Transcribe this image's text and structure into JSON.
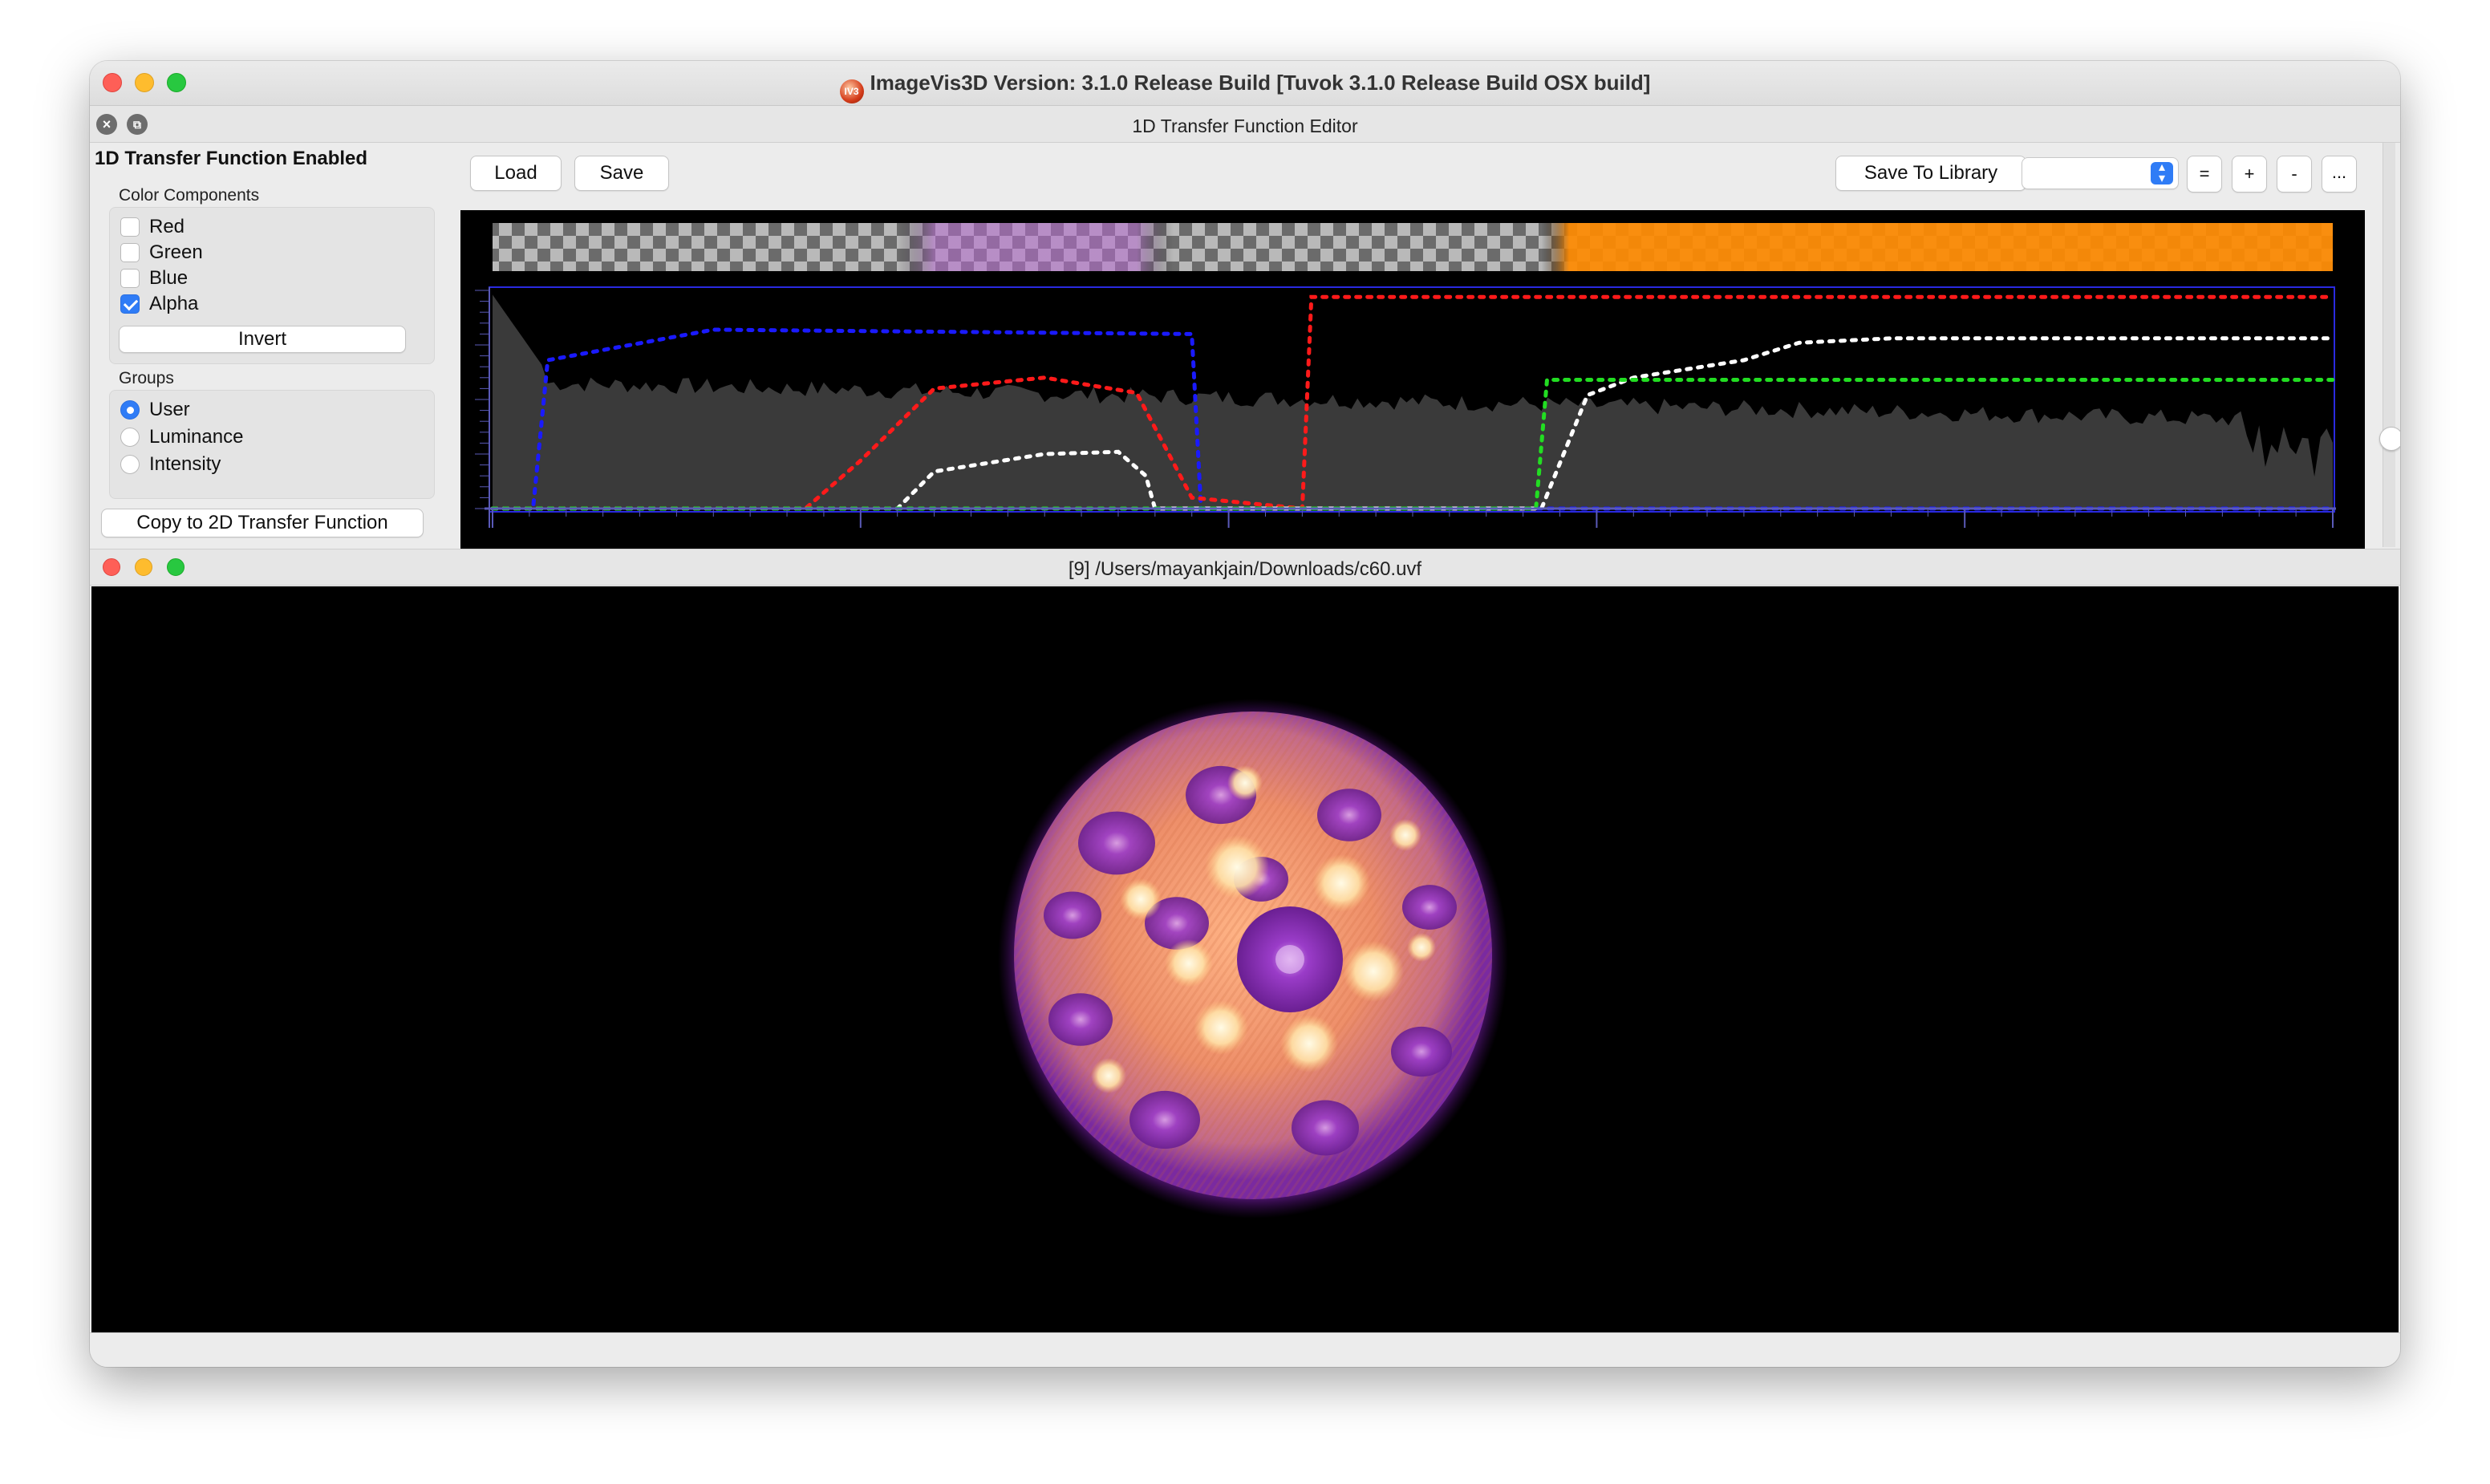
{
  "app": {
    "title": "ImageVis3D Version: 3.1.0 Release Build [Tuvok 3.1.0 Release Build OSX build]",
    "icon": "imagevis3d-app-icon",
    "icon_text": "IV3"
  },
  "tf_editor": {
    "dock_title": "1D Transfer Function Editor",
    "enabled_label": "1D Transfer Function Enabled",
    "color_components": {
      "label": "Color Components",
      "items": [
        {
          "label": "Red",
          "checked": false
        },
        {
          "label": "Green",
          "checked": false
        },
        {
          "label": "Blue",
          "checked": false
        },
        {
          "label": "Alpha",
          "checked": true
        }
      ],
      "invert_label": "Invert"
    },
    "groups": {
      "label": "Groups",
      "items": [
        {
          "label": "User",
          "selected": true
        },
        {
          "label": "Luminance",
          "selected": false
        },
        {
          "label": "Intensity",
          "selected": false
        }
      ]
    },
    "copy_2d_label": "Copy to 2D Transfer Function",
    "toolbar": {
      "load_label": "Load",
      "save_label": "Save",
      "save_library_label": "Save To Library",
      "library_selected": "",
      "eq_label": "=",
      "plus_label": "+",
      "minus_label": "-",
      "more_label": "..."
    },
    "colors": {
      "red_curve": "#ff1a1a",
      "green_curve": "#22dd22",
      "blue_curve": "#1a1aff",
      "alpha_curve": "#ffffff",
      "histogram": "#3a3a3a",
      "accent": "#2f7cf6"
    }
  },
  "render_window": {
    "title": "[9] /Users/mayankjain/Downloads/c60.uvf",
    "content": "c60-buckyball-volume-render"
  }
}
